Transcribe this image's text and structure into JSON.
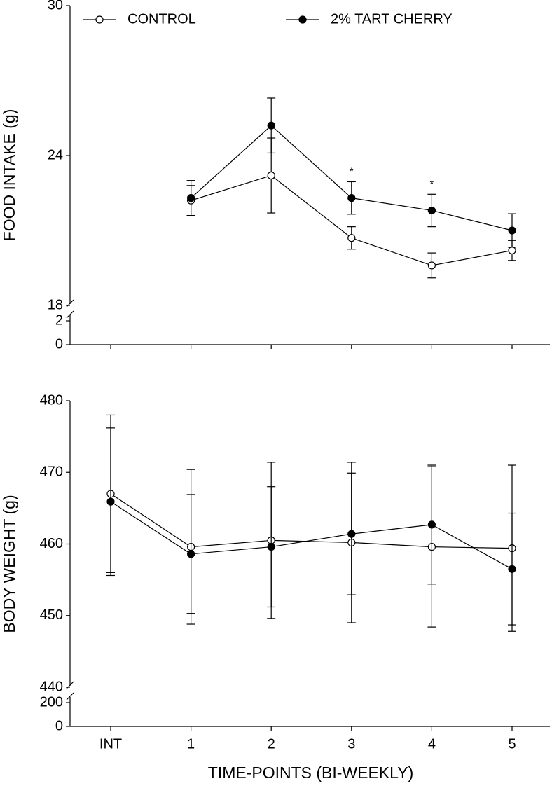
{
  "chart_data": [
    {
      "type": "line",
      "ylabel": "FOOD INTAKE (g)",
      "ylim": [
        0,
        30
      ],
      "axis_break": [
        2,
        18
      ],
      "yticks": [
        0,
        2,
        18,
        24,
        30
      ],
      "legend": "top",
      "series": [
        {
          "name": "CONTROL",
          "color": "#000000",
          "marker": "open",
          "values": [
            null,
            22.2,
            23.2,
            20.7,
            19.6,
            20.2
          ],
          "errors": [
            null,
            0.6,
            1.5,
            0.45,
            0.5,
            0.4
          ]
        },
        {
          "name": "2% TART CHERRY",
          "color": "#000000",
          "marker": "filled",
          "values": [
            null,
            22.3,
            25.2,
            22.3,
            21.8,
            21.0
          ],
          "errors": [
            null,
            0.7,
            1.1,
            0.65,
            0.65,
            0.67
          ]
        }
      ],
      "significance": [
        null,
        null,
        null,
        "*",
        "*",
        null
      ]
    },
    {
      "type": "line",
      "xlabel": "TIME-POINTS (BI-WEEKLY)",
      "ylabel": "BODY WEIGHT (g)",
      "categories": [
        "INT",
        "1",
        "2",
        "3",
        "4",
        "5"
      ],
      "ylim": [
        0,
        480
      ],
      "axis_break": [
        200,
        440
      ],
      "yticks": [
        0,
        200,
        440,
        450,
        460,
        470,
        480
      ],
      "series": [
        {
          "name": "CONTROL",
          "color": "#000000",
          "marker": "open",
          "values": [
            467.0,
            459.6,
            460.5,
            460.2,
            459.6,
            459.4
          ],
          "errors": [
            11.0,
            10.8,
            10.9,
            11.2,
            11.2,
            11.6
          ]
        },
        {
          "name": "2% TART CHERRY",
          "color": "#000000",
          "marker": "filled",
          "values": [
            465.9,
            458.6,
            459.6,
            461.4,
            462.7,
            456.5
          ],
          "errors": [
            10.3,
            8.3,
            8.4,
            8.5,
            8.3,
            7.8
          ]
        }
      ]
    }
  ]
}
